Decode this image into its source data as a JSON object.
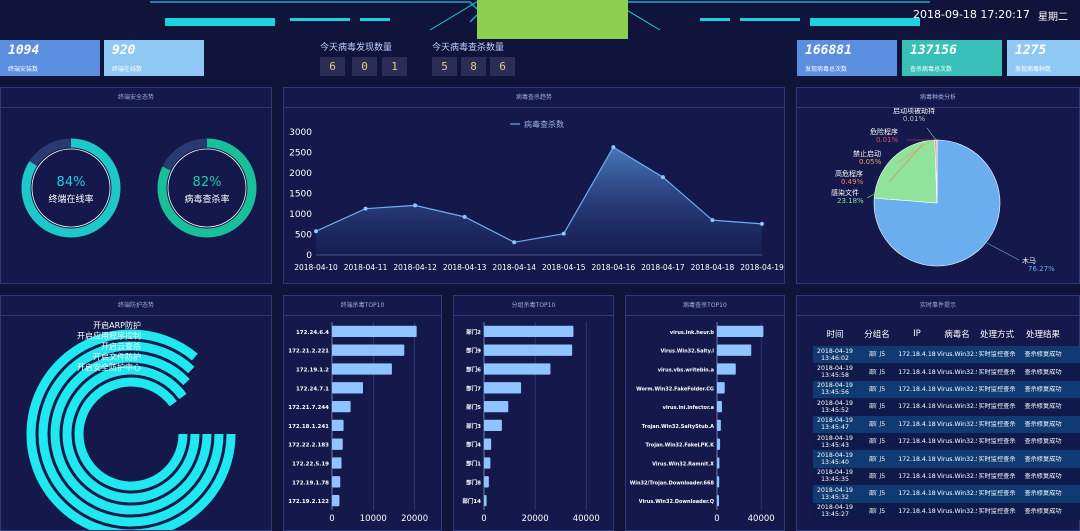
{
  "header": {
    "datetime": "2018-09-18 17:20:17",
    "weekday": "星期二"
  },
  "stats_left": [
    {
      "value": "1094",
      "label": "终端安装数"
    },
    {
      "value": "920",
      "label": "终端在线数"
    }
  ],
  "stats_right": [
    {
      "value": "166881",
      "label": "发现病毒总次数"
    },
    {
      "value": "137156",
      "label": "查杀病毒总次数"
    },
    {
      "value": "1275",
      "label": "发现病毒种数"
    }
  ],
  "counters": [
    {
      "title": "今天病毒发现数量",
      "digits": [
        "6",
        "0",
        "1"
      ]
    },
    {
      "title": "今天病毒查杀数量",
      "digits": [
        "5",
        "8",
        "6"
      ]
    }
  ],
  "colors": {
    "accent_cyan": "#1fd0e0",
    "ring_green": "#18c0a0",
    "line": "#5b9ae0",
    "bar": "#8ec4ff",
    "logo": "#8ccf4f"
  },
  "panels": {
    "security": {
      "title": "终端安全态势",
      "gauges": [
        {
          "value": 84,
          "text": "84%",
          "label": "终端在线率"
        },
        {
          "value": 82,
          "text": "82%",
          "label": "病毒查杀率"
        }
      ]
    },
    "trend": {
      "title": "病毒查杀趋势"
    },
    "types": {
      "title": "病毒种类分析"
    },
    "protection": {
      "title": "终端防护态势"
    },
    "top_terminal": {
      "title": "终端杀毒TOP10"
    },
    "top_group": {
      "title": "分组杀毒TOP10"
    },
    "top_virus": {
      "title": "病毒查杀TOP10"
    },
    "events": {
      "title": "实时事件提示",
      "columns": [
        "时间",
        "分组名",
        "IP",
        "病毒名",
        "处理方式",
        "处理结果"
      ],
      "rows": [
        [
          "2018-04-19 13:46:02",
          "部门5",
          "172.18.4.18",
          "Virus.Win32.Sality.l",
          "实时监控查杀",
          "查杀修复成功"
        ],
        [
          "2018-04-19 13:45:58",
          "部门5",
          "172.18.4.18",
          "Virus.Win32.Sality.l",
          "实时监控查杀",
          "查杀修复成功"
        ],
        [
          "2018-04-19 13:45:56",
          "部门5",
          "172.18.4.18",
          "Virus.Win32.Sality.l",
          "实时监控查杀",
          "查杀修复成功"
        ],
        [
          "2018-04-19 13:45:52",
          "部门5",
          "172.18.4.18",
          "Virus.Win32.Sality.l",
          "实时监控查杀",
          "查杀修复成功"
        ],
        [
          "2018-04-19 13:45:47",
          "部门5",
          "172.18.4.18",
          "Virus.Win32.Sality.l",
          "实时监控查杀",
          "查杀修复成功"
        ],
        [
          "2018-04-19 13:45:43",
          "部门5",
          "172.18.4.18",
          "Virus.Win32.Sality.l",
          "实时监控查杀",
          "查杀修复成功"
        ],
        [
          "2018-04-19 13:45:40",
          "部门5",
          "172.18.4.18",
          "Virus.Win32.Sality.l",
          "实时监控查杀",
          "查杀修复成功"
        ],
        [
          "2018-04-19 13:45:35",
          "部门5",
          "172.18.4.18",
          "Virus.Win32.Sality.l",
          "实时监控查杀",
          "查杀修复成功"
        ],
        [
          "2018-04-19 13:45:32",
          "部门5",
          "172.18.4.18",
          "Virus.Win32.Sality.l",
          "实时监控查杀",
          "查杀修复成功"
        ],
        [
          "2018-04-19 13:45:27",
          "部门5",
          "172.18.4.18",
          "Virus.Win32.Sality.l",
          "实时监控查杀",
          "查杀修复成功"
        ]
      ]
    }
  },
  "chart_data": [
    {
      "type": "area",
      "legend": "病毒查杀数",
      "x": [
        "2018-04-10",
        "2018-04-11",
        "2018-04-12",
        "2018-04-13",
        "2018-04-14",
        "2018-04-15",
        "2018-04-16",
        "2018-04-17",
        "2018-04-18",
        "2018-04-19"
      ],
      "values": [
        580,
        1130,
        1210,
        930,
        310,
        520,
        2630,
        1900,
        850,
        760
      ],
      "yticks": [
        0,
        500,
        1000,
        1500,
        2000,
        2500,
        3000
      ],
      "ylim": [
        0,
        3000
      ]
    },
    {
      "type": "pie",
      "slices": [
        {
          "name": "木马",
          "pct": 76.27,
          "text": "木马\n76.27%",
          "color": "#6aaef0"
        },
        {
          "name": "感染文件",
          "pct": 23.18,
          "text": "感染文件\n23.18%",
          "color": "#8fe39a"
        },
        {
          "name": "高危程序",
          "pct": 0.49,
          "text": "高危程序\n0.49%",
          "color": "#f08070"
        },
        {
          "name": "禁止启动",
          "pct": 0.05,
          "text": "禁止启动\n0.05%",
          "color": "#f0a060"
        },
        {
          "name": "危险程序",
          "pct": 0.01,
          "text": "危险程序\n0.01%",
          "color": "#e05060"
        },
        {
          "name": "启动项被劫持",
          "pct": 0.01,
          "text": "启动项被劫持\n0.01%",
          "color": "#a0a0a0"
        }
      ],
      "labels": [
        {
          "name": "启动项被劫持",
          "pct": "0.01%",
          "color": "#c0c0c0"
        },
        {
          "name": "危险程序",
          "pct": "0.01%",
          "color": "#e05060"
        },
        {
          "name": "禁止启动",
          "pct": "0.05%",
          "color": "#f0a060"
        },
        {
          "name": "高危程序",
          "pct": "0.49%",
          "color": "#f08070"
        },
        {
          "name": "感染文件",
          "pct": "23.18%",
          "color": "#8fe39a"
        },
        {
          "name": "木马",
          "pct": "76.27%",
          "color": "#6aaef0"
        }
      ]
    },
    {
      "type": "radial-bar",
      "categories": [
        "开启ARP防护",
        "开启应用程序控制",
        "开启云查杀",
        "开启文件防护",
        "开启安全防护中心"
      ],
      "display_labels": [
        "开启ARP防护",
        "开启应用程序控制",
        "开启云查杀",
        "开启文件防护",
        "开启安全防护中心"
      ],
      "values": [
        0.86,
        0.87,
        0.88,
        0.9,
        0.9
      ]
    },
    {
      "type": "bar",
      "categories": [
        "172.24.6.4",
        "172.21.2.221",
        "172.19.1.2",
        "172.24.7.1",
        "172.21.7.244",
        "172.18.1.241",
        "172.22.2.183",
        "172.22.5.19",
        "172.19.1.78",
        "172.19.2.122"
      ],
      "values": [
        20500,
        17500,
        14500,
        7500,
        4500,
        2800,
        2600,
        2300,
        2000,
        1800
      ],
      "xticks": [
        0,
        10000,
        20000
      ],
      "xlim": [
        0,
        23000
      ]
    },
    {
      "type": "bar",
      "categories": [
        "部门2",
        "部门9",
        "部门6",
        "部门7",
        "部门5",
        "部门3",
        "部门4",
        "部门1",
        "部门8",
        "部门14"
      ],
      "values": [
        35000,
        34500,
        26000,
        14500,
        9500,
        7000,
        2800,
        2500,
        1900,
        1000
      ],
      "xticks": [
        0,
        20000,
        40000
      ],
      "xlim": [
        0,
        45000
      ]
    },
    {
      "type": "bar",
      "categories": [
        "virus.lnk.heur.b",
        "Virus.Win32.Salty.l",
        "virus.vbs.writebin.a",
        "Worm.Win32.FakeFolder.CG",
        "virus.ini.infector.a",
        "Trojan.Win32.SaltyStub.A",
        "Trojan.Win32.FakeLPK.K",
        "Virus.Win32.Ramnit.X",
        "Win32/Trojan.Downloader.668",
        "Virus.Win32.Downloader.Q"
      ],
      "values": [
        42000,
        31000,
        17000,
        7000,
        4500,
        3500,
        2800,
        2200,
        2000,
        1700
      ],
      "xticks": [
        0,
        40000
      ],
      "xlim": [
        0,
        48000
      ]
    }
  ]
}
